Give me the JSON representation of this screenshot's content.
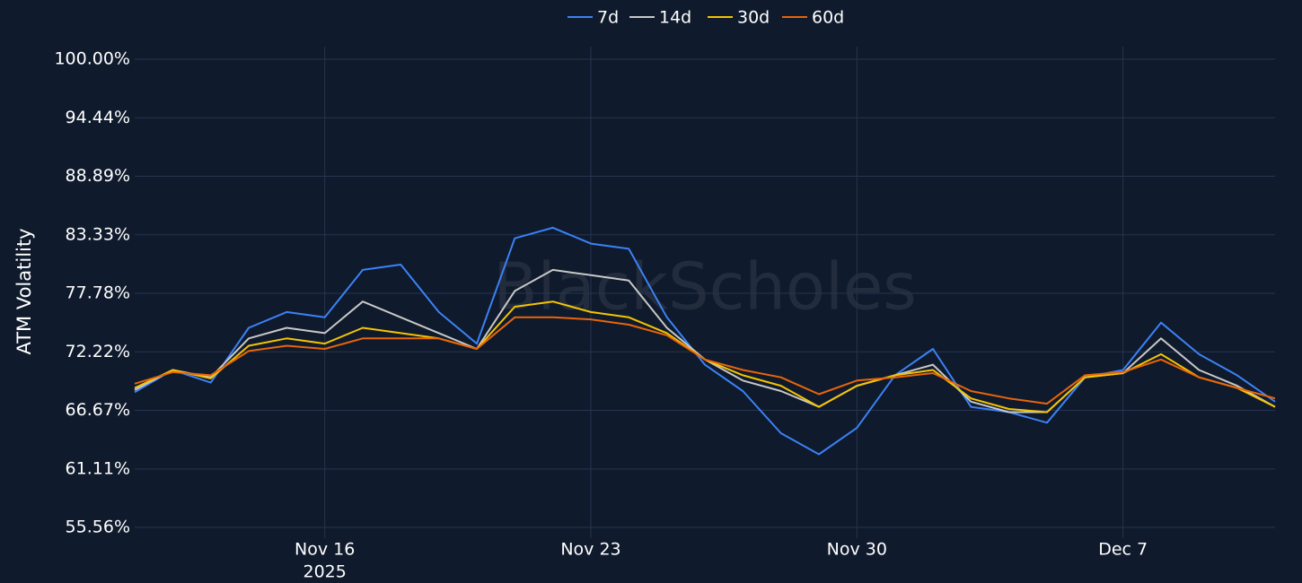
{
  "chart_data": {
    "type": "line",
    "y_label": "ATM Volatility",
    "watermark": "BlackScholes",
    "x": [
      "2025-11-11",
      "2025-11-12",
      "2025-11-13",
      "2025-11-14",
      "2025-11-15",
      "2025-11-16",
      "2025-11-17",
      "2025-11-18",
      "2025-11-19",
      "2025-11-20",
      "2025-11-21",
      "2025-11-22",
      "2025-11-23",
      "2025-11-24",
      "2025-11-25",
      "2025-11-26",
      "2025-11-27",
      "2025-11-28",
      "2025-11-29",
      "2025-11-30",
      "2025-12-01",
      "2025-12-02",
      "2025-12-03",
      "2025-12-04",
      "2025-12-05",
      "2025-12-06",
      "2025-12-07",
      "2025-12-08",
      "2025-12-09",
      "2025-12-10",
      "2025-12-11"
    ],
    "xlim": [
      "2025-11-11",
      "2025-12-11"
    ],
    "xticks": [
      {
        "value": "2025-11-16",
        "label": "Nov 16"
      },
      {
        "value": "2025-11-23",
        "label": "Nov 23"
      },
      {
        "value": "2025-11-30",
        "label": "Nov 30"
      },
      {
        "value": "2025-12-07",
        "label": "Dec 7"
      }
    ],
    "xtick_year": "2025",
    "ylim": [
      54.54,
      101.19
    ],
    "yticks": [
      {
        "value": 55.56,
        "label": "55.56%"
      },
      {
        "value": 61.11,
        "label": "61.11%"
      },
      {
        "value": 66.67,
        "label": "66.67%"
      },
      {
        "value": 72.22,
        "label": "72.22%"
      },
      {
        "value": 77.78,
        "label": "77.78%"
      },
      {
        "value": 83.33,
        "label": "83.33%"
      },
      {
        "value": 88.89,
        "label": "88.89%"
      },
      {
        "value": 94.44,
        "label": "94.44%"
      },
      {
        "value": 100,
        "label": "100.00%"
      }
    ],
    "grid": true,
    "legend": "top",
    "series": [
      {
        "name": "7d",
        "color": "#3b82f6",
        "values": [
          68.4,
          70.5,
          69.3,
          74.5,
          76,
          75.5,
          80,
          80.5,
          76,
          73,
          83,
          84,
          82.5,
          82,
          75.5,
          71,
          68.5,
          64.5,
          62.5,
          65,
          70,
          72.5,
          67,
          66.5,
          65.5,
          69.8,
          70.5,
          75,
          72,
          70,
          67.5
        ]
      },
      {
        "name": "14d",
        "color": "#c8c8c8",
        "values": [
          68.6,
          70.5,
          69.8,
          73.5,
          74.5,
          74,
          77,
          75.5,
          74,
          72.5,
          78,
          80,
          79.5,
          79,
          74.5,
          71.5,
          69.5,
          68.5,
          67,
          69,
          70,
          71,
          67.5,
          66.5,
          66.5,
          69.8,
          70.2,
          73.5,
          70.5,
          69,
          67
        ]
      },
      {
        "name": "30d",
        "color": "#f5c400",
        "values": [
          68.8,
          70.5,
          69.7,
          72.8,
          73.5,
          73,
          74.5,
          74,
          73.5,
          72.5,
          76.5,
          77,
          76,
          75.5,
          74,
          71.5,
          70,
          69,
          67,
          69,
          70,
          70.5,
          67.8,
          66.8,
          66.5,
          69.8,
          70.2,
          72,
          69.8,
          68.8,
          67
        ]
      },
      {
        "name": "60d",
        "color": "#e8650a",
        "values": [
          69.2,
          70.3,
          70,
          72.3,
          72.8,
          72.5,
          73.5,
          73.5,
          73.5,
          72.5,
          75.5,
          75.5,
          75.3,
          74.8,
          73.8,
          71.5,
          70.5,
          69.8,
          68.2,
          69.5,
          69.8,
          70.2,
          68.5,
          67.8,
          67.3,
          70,
          70.3,
          71.5,
          69.8,
          68.8,
          67.8
        ]
      }
    ]
  }
}
